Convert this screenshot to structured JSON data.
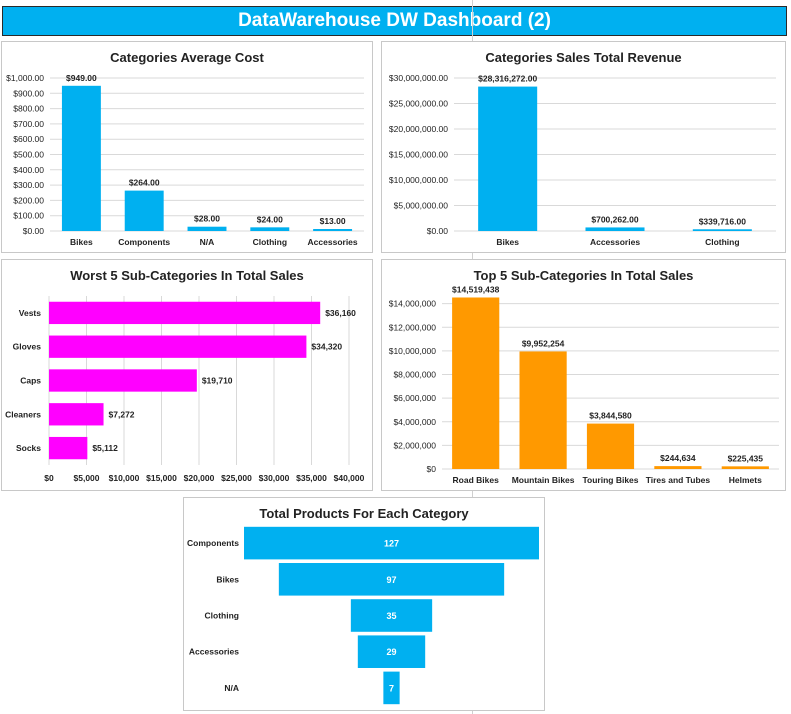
{
  "header": {
    "title": "DataWarehouse DW Dashboard (2)"
  },
  "colors": {
    "banner": "#00b0f0",
    "blue": "#00b0f0",
    "magenta": "#ff00ff",
    "orange": "#ff9900"
  },
  "chart_data": [
    {
      "id": "avg-cost",
      "type": "bar",
      "title": "Categories Average Cost",
      "categories": [
        "Bikes",
        "Components",
        "N/A",
        "Clothing",
        "Accessories"
      ],
      "values": [
        949,
        264,
        28,
        24,
        13
      ],
      "data_labels": [
        "$949.00",
        "$264.00",
        "$28.00",
        "$24.00",
        "$13.00"
      ],
      "ylim": [
        0,
        1000
      ],
      "yticks": [
        0,
        100,
        200,
        300,
        400,
        500,
        600,
        700,
        800,
        900,
        1000
      ],
      "ytick_labels": [
        "$0.00",
        "$100.00",
        "$200.00",
        "$300.00",
        "$400.00",
        "$500.00",
        "$600.00",
        "$700.00",
        "$800.00",
        "$900.00",
        "$1,000.00"
      ],
      "color": "#00b0f0",
      "grid": true
    },
    {
      "id": "total-revenue",
      "type": "bar",
      "title": "Categories Sales Total Revenue",
      "categories": [
        "Bikes",
        "Accessories",
        "Clothing"
      ],
      "values": [
        28316272,
        700262,
        339716
      ],
      "data_labels": [
        "$28,316,272.00",
        "$700,262.00",
        "$339,716.00"
      ],
      "ylim": [
        0,
        30000000
      ],
      "yticks": [
        0,
        5000000,
        10000000,
        15000000,
        20000000,
        25000000,
        30000000
      ],
      "ytick_labels": [
        "$0.00",
        "$5,000,000.00",
        "$10,000,000.00",
        "$15,000,000.00",
        "$20,000,000.00",
        "$25,000,000.00",
        "$30,000,000.00"
      ],
      "color": "#00b0f0",
      "grid": true
    },
    {
      "id": "worst-5",
      "type": "bar",
      "orientation": "horizontal",
      "title": "Worst 5 Sub-Categories In Total Sales",
      "categories": [
        "Vests",
        "Gloves",
        "Caps",
        "Cleaners",
        "Socks"
      ],
      "values": [
        36160,
        34320,
        19710,
        7272,
        5112
      ],
      "data_labels": [
        "$36,160",
        "$34,320",
        "$19,710",
        "$7,272",
        "$5,112"
      ],
      "xlim": [
        0,
        40000
      ],
      "xticks": [
        0,
        5000,
        10000,
        15000,
        20000,
        25000,
        30000,
        35000,
        40000
      ],
      "xtick_labels": [
        "$0",
        "$5,000",
        "$10,000",
        "$15,000",
        "$20,000",
        "$25,000",
        "$30,000",
        "$35,000",
        "$40,000"
      ],
      "color": "#ff00ff",
      "grid": true
    },
    {
      "id": "top-5",
      "type": "bar",
      "title": "Top 5 Sub-Categories In Total Sales",
      "categories": [
        "Road Bikes",
        "Mountain Bikes",
        "Touring Bikes",
        "Tires and Tubes",
        "Helmets"
      ],
      "values": [
        14519438,
        9952254,
        3844580,
        244634,
        225435
      ],
      "data_labels": [
        "$14,519,438",
        "$9,952,254",
        "$3,844,580",
        "$244,634",
        "$225,435"
      ],
      "ylim": [
        0,
        16000000
      ],
      "yticks": [
        0,
        2000000,
        4000000,
        6000000,
        8000000,
        10000000,
        12000000,
        14000000
      ],
      "ytick_labels": [
        "$0",
        "$2,000,000",
        "$4,000,000",
        "$6,000,000",
        "$8,000,000",
        "$10,000,000",
        "$12,000,000",
        "$14,000,000"
      ],
      "color": "#ff9900",
      "grid": true
    },
    {
      "id": "funnel",
      "type": "bar",
      "orientation": "funnel",
      "title": "Total Products For Each Category",
      "categories": [
        "Components",
        "Bikes",
        "Clothing",
        "Accessories",
        "N/A"
      ],
      "values": [
        127,
        97,
        35,
        29,
        7
      ],
      "data_labels": [
        "127",
        "97",
        "35",
        "29",
        "7"
      ],
      "color": "#00b0f0",
      "grid": false
    }
  ]
}
